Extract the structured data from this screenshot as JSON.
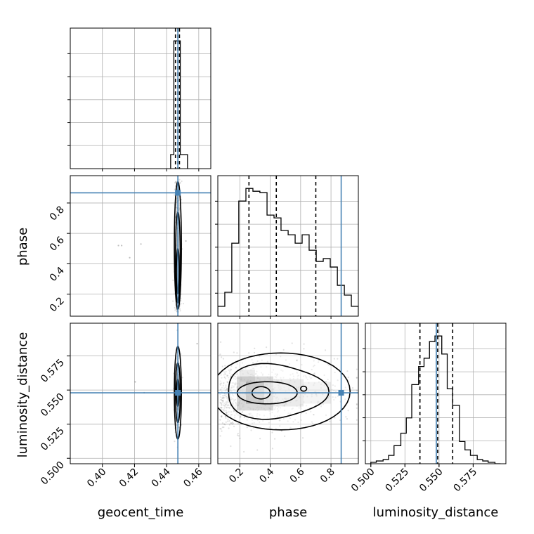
{
  "chart_data": {
    "type": "corner",
    "parameters": [
      "geocent_time",
      "phase",
      "luminosity_distance"
    ],
    "truths": {
      "geocent_time": 0.447,
      "phase": 0.867,
      "luminosity_distance": 0.548
    },
    "colors": {
      "truth": "#4682b4",
      "hist": "#000000",
      "grid": "#b0b0b0",
      "contour": "#000000",
      "shade": "#000000"
    },
    "grid": true,
    "histograms": {
      "geocent_time": {
        "xlim": [
          0.38,
          0.4675
        ],
        "ticks": [
          "0.40",
          "0.42",
          "0.44",
          "0.46"
        ],
        "tick_values": [
          0.4,
          0.42,
          0.44,
          0.46
        ],
        "bins": [
          0.4425,
          0.4445,
          0.446,
          0.4485,
          0.453
        ],
        "counts": [
          0.11,
          1.0,
          1.0,
          0.11
        ],
        "quantiles": [
          0.4455,
          0.447,
          0.448
        ]
      },
      "phase": {
        "xlim": [
          0.055,
          0.98
        ],
        "bins": [
          0.055,
          0.101,
          0.147,
          0.193,
          0.24,
          0.286,
          0.332,
          0.379,
          0.425,
          0.471,
          0.518,
          0.564,
          0.61,
          0.656,
          0.703,
          0.749,
          0.795,
          0.842,
          0.888,
          0.934,
          0.98
        ],
        "counts": [
          0.07,
          0.17,
          0.52,
          0.82,
          0.91,
          0.89,
          0.88,
          0.72,
          0.7,
          0.61,
          0.58,
          0.52,
          0.58,
          0.47,
          0.39,
          0.41,
          0.35,
          0.22,
          0.15,
          0.07
        ],
        "quantiles": [
          0.26,
          0.44,
          0.7
        ]
      },
      "luminosity_distance": {
        "xlim": [
          0.496,
          0.599
        ],
        "ticks": [
          "0.500",
          "0.525",
          "0.550",
          "0.575"
        ],
        "tick_values": [
          0.5,
          0.525,
          0.55,
          0.575
        ],
        "bins": [
          0.5,
          0.504,
          0.509,
          0.513,
          0.517,
          0.522,
          0.526,
          0.53,
          0.535,
          0.539,
          0.543,
          0.547,
          0.552,
          0.556,
          0.56,
          0.565,
          0.569,
          0.573,
          0.578,
          0.582,
          0.586,
          0.591,
          0.595
        ],
        "counts": [
          0.01,
          0.02,
          0.03,
          0.06,
          0.13,
          0.22,
          0.33,
          0.57,
          0.7,
          0.76,
          0.88,
          0.92,
          0.79,
          0.54,
          0.42,
          0.16,
          0.1,
          0.06,
          0.03,
          0.02,
          0.01,
          0.0
        ],
        "quantiles": [
          0.536,
          0.549,
          0.56
        ]
      }
    },
    "phase_axis": {
      "ticks": [
        "0.2",
        "0.4",
        "0.6",
        "0.8"
      ],
      "tick_values": [
        0.2,
        0.4,
        0.6,
        0.8
      ]
    },
    "density_peaks": {
      "phase_vs_geocent_time": {
        "x": 0.447,
        "y": 0.33
      },
      "luminosity_distance_vs_geocent_time": {
        "x": 0.447,
        "y": 0.548
      },
      "luminosity_distance_vs_phase": {
        "x": 0.33,
        "y": 0.548
      }
    },
    "labels": {
      "x": [
        "geocent_time",
        "phase",
        "luminosity_distance"
      ],
      "y": [
        "phase",
        "luminosity_distance"
      ]
    }
  }
}
